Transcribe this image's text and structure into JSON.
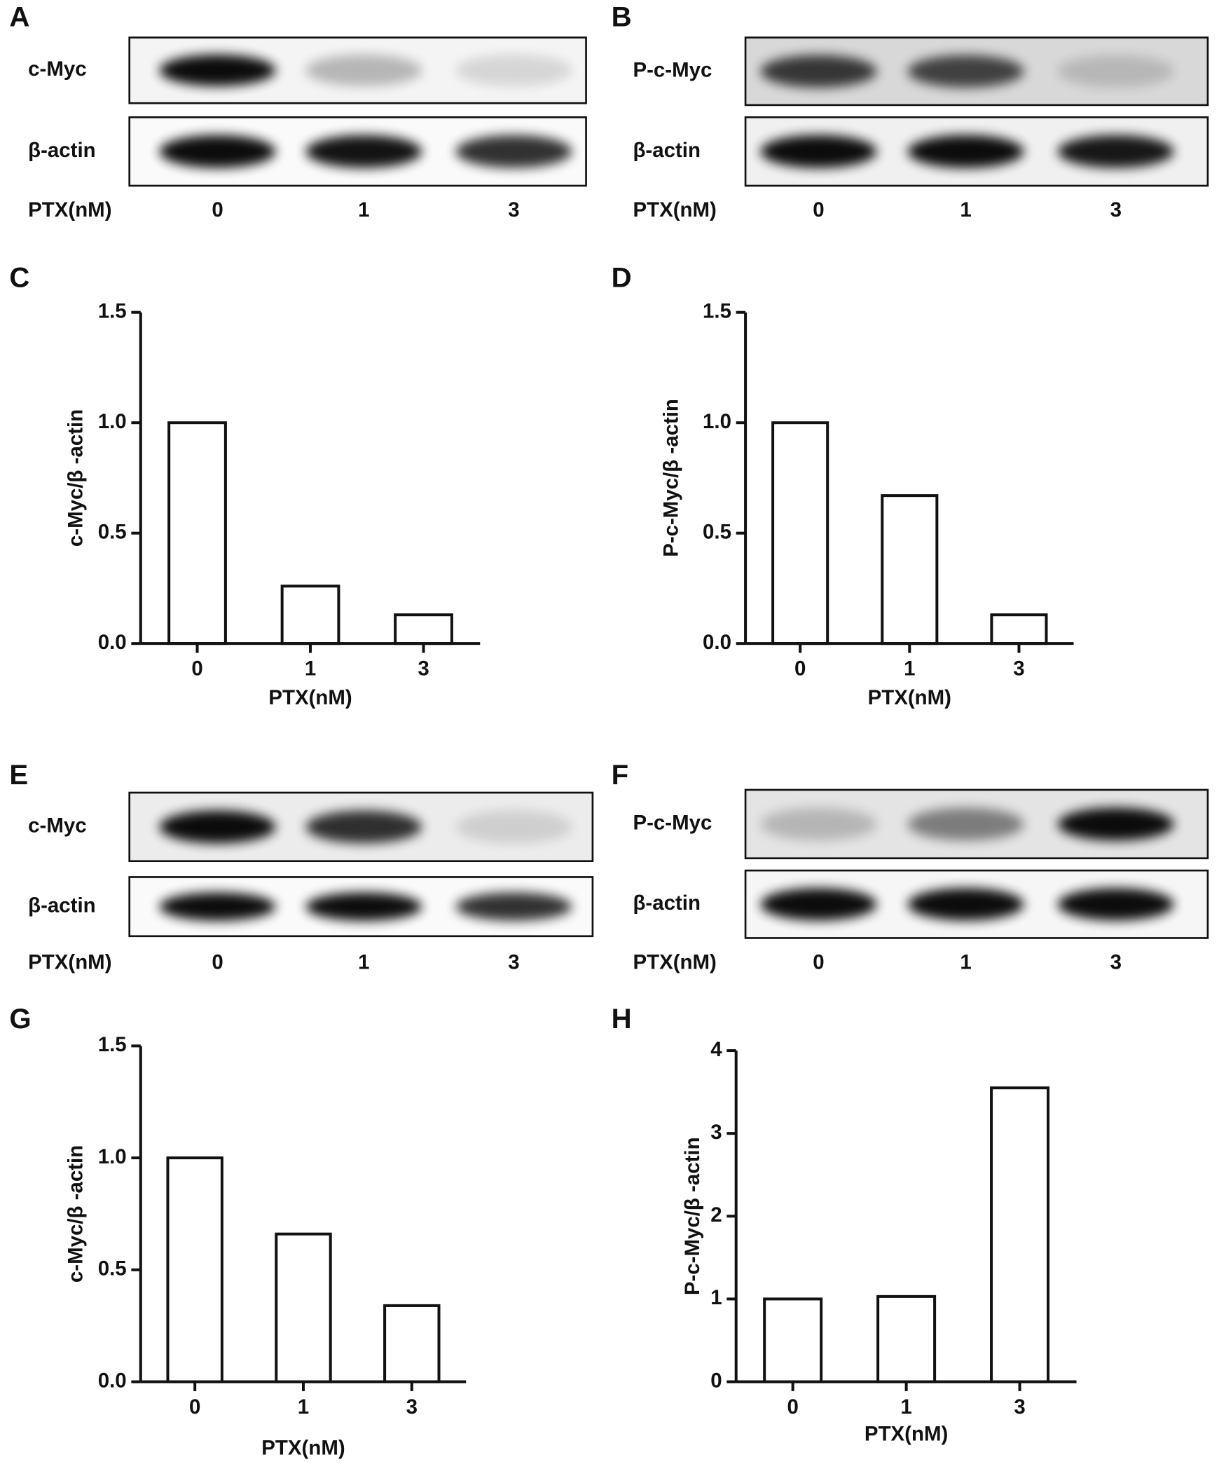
{
  "blots": [
    {
      "panel": "A",
      "rows": [
        "c-Myc",
        "β-actin"
      ],
      "x_label": "PTX(nM)",
      "lanes": [
        "0",
        "1",
        "3"
      ]
    },
    {
      "panel": "B",
      "rows": [
        "P-c-Myc",
        "β-actin"
      ],
      "x_label": "PTX(nM)",
      "lanes": [
        "0",
        "1",
        "3"
      ]
    },
    {
      "panel": "E",
      "rows": [
        "c-Myc",
        "β-actin"
      ],
      "x_label": "PTX(nM)",
      "lanes": [
        "0",
        "1",
        "3"
      ]
    },
    {
      "panel": "F",
      "rows": [
        "P-c-Myc",
        "β-actin"
      ],
      "x_label": "PTX(nM)",
      "lanes": [
        "0",
        "1",
        "3"
      ]
    }
  ],
  "chart_data": [
    {
      "type": "bar",
      "panel": "C",
      "ylabel": "c-Myc/β -actin",
      "xlabel": "PTX(nM)",
      "categories": [
        "0",
        "1",
        "3"
      ],
      "values": [
        1.0,
        0.26,
        0.13
      ],
      "color": "#ffffff",
      "ylim": [
        0,
        1.5
      ],
      "yticks": [
        {
          "value": 0,
          "label": "0.0"
        },
        0.5,
        {
          "value": 1,
          "label": "1.0"
        },
        1.5
      ]
    },
    {
      "type": "bar",
      "panel": "D",
      "ylabel": "P-c-Myc/β -actin",
      "xlabel": "PTX(nM)",
      "categories": [
        "0",
        "1",
        "3"
      ],
      "values": [
        1.0,
        0.67,
        0.13
      ],
      "color": "#ffffff",
      "ylim": [
        0,
        1.5
      ],
      "yticks": [
        {
          "value": 0,
          "label": "0.0"
        },
        0.5,
        {
          "value": 1,
          "label": "1.0"
        },
        1.5
      ]
    },
    {
      "type": "bar",
      "panel": "G",
      "ylabel": "c-Myc/β -actin",
      "xlabel": "PTX(nM)",
      "categories": [
        "0",
        "1",
        "3"
      ],
      "values": [
        1.0,
        0.66,
        0.34
      ],
      "color": "#ffffff",
      "ylim": [
        0,
        1.5
      ],
      "yticks": [
        {
          "value": 0,
          "label": "0.0"
        },
        0.5,
        {
          "value": 1,
          "label": "1.0"
        },
        1.5
      ]
    },
    {
      "type": "bar",
      "panel": "H",
      "ylabel": "P-c-Myc/β -actin",
      "xlabel": "PTX(nM)",
      "categories": [
        "0",
        "1",
        "3"
      ],
      "values": [
        1.0,
        1.03,
        3.55
      ],
      "color": "#ffffff",
      "ylim": [
        0,
        4
      ],
      "yticks": [
        0,
        1,
        2,
        3,
        4
      ]
    }
  ]
}
